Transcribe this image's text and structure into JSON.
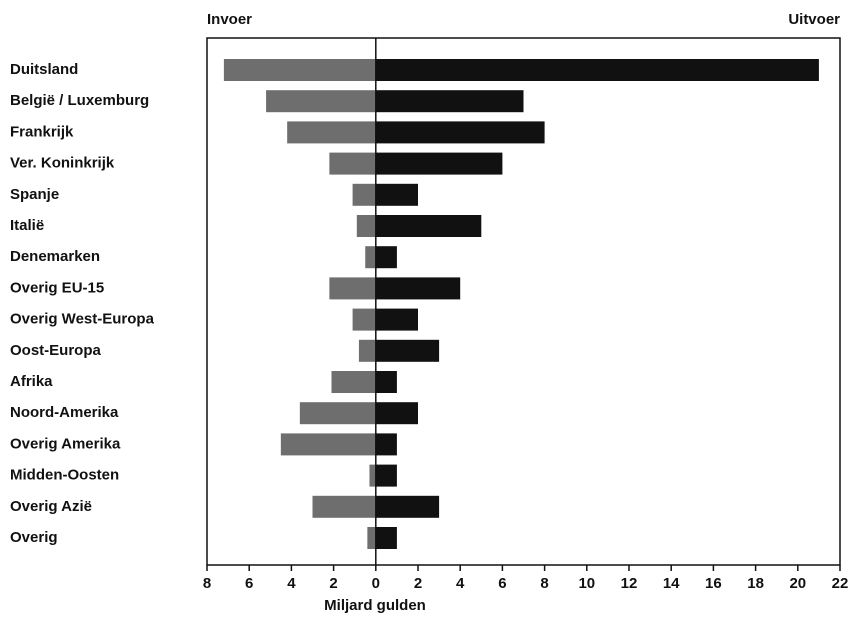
{
  "chart_data": {
    "type": "diverging-bar",
    "xlabel": "Miljard gulden",
    "categories": [
      "Duitsland",
      "België / Luxemburg",
      "Frankrijk",
      "Ver. Koninkrijk",
      "Spanje",
      "Italië",
      "Denemarken",
      "Overig EU-15",
      "Overig West-Europa",
      "Oost-Europa",
      "Afrika",
      "Noord-Amerika",
      "Overig Amerika",
      "Midden-Oosten",
      "Overig Azië",
      "Overig"
    ],
    "series": [
      {
        "name": "Invoer",
        "color": "#6e6e6e",
        "values": [
          -7.2,
          -5.2,
          -4.2,
          -2.2,
          -1.1,
          -0.9,
          -0.5,
          -2.2,
          -1.1,
          -0.8,
          -2.1,
          -3.6,
          -4.5,
          -0.3,
          -3.0,
          -0.4
        ]
      },
      {
        "name": "Uitvoer",
        "color": "#111111",
        "values": [
          21,
          7,
          8,
          6,
          2,
          5,
          1,
          4,
          2,
          3,
          1,
          2,
          1,
          1,
          3,
          1
        ]
      }
    ],
    "xlim": [
      -8,
      22
    ],
    "xticks": [
      {
        "value": -8,
        "label": "8"
      },
      {
        "value": -6,
        "label": "6"
      },
      {
        "value": -4,
        "label": "4"
      },
      {
        "value": -2,
        "label": "2"
      },
      0,
      2,
      4,
      6,
      8,
      10,
      12,
      14,
      16,
      18,
      20,
      22
    ]
  }
}
